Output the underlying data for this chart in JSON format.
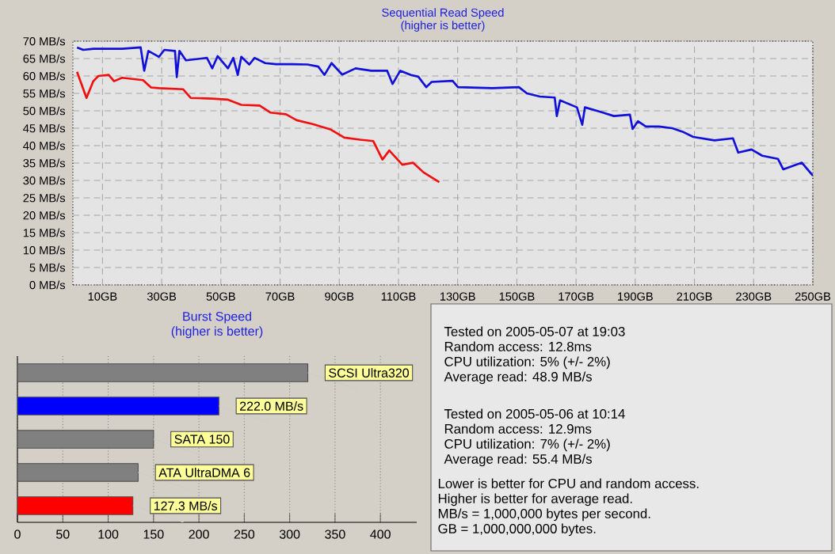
{
  "chart_data": [
    {
      "type": "line",
      "title": "Sequential Read Speed",
      "subtitle": "(higher is better)",
      "xlim": [
        0,
        250
      ],
      "ylim": [
        0,
        70
      ],
      "grid": true,
      "xticks": [
        {
          "value": 10,
          "label": "10GB"
        },
        {
          "value": 30,
          "label": "30GB"
        },
        {
          "value": 50,
          "label": "50GB"
        },
        {
          "value": 70,
          "label": "70GB"
        },
        {
          "value": 90,
          "label": "90GB"
        },
        {
          "value": 110,
          "label": "110GB"
        },
        {
          "value": 130,
          "label": "130GB"
        },
        {
          "value": 150,
          "label": "150GB"
        },
        {
          "value": 170,
          "label": "170GB"
        },
        {
          "value": 190,
          "label": "190GB"
        },
        {
          "value": 210,
          "label": "210GB"
        },
        {
          "value": 230,
          "label": "230GB"
        },
        {
          "value": 250,
          "label": "250GB"
        }
      ],
      "yticks": [
        {
          "value": 0,
          "label": "0 MB/s"
        },
        {
          "value": 5,
          "label": "5 MB/s"
        },
        {
          "value": 10,
          "label": "10 MB/s"
        },
        {
          "value": 15,
          "label": "15 MB/s"
        },
        {
          "value": 20,
          "label": "20 MB/s"
        },
        {
          "value": 25,
          "label": "25 MB/s"
        },
        {
          "value": 30,
          "label": "30 MB/s"
        },
        {
          "value": 35,
          "label": "35 MB/s"
        },
        {
          "value": 40,
          "label": "40 MB/s"
        },
        {
          "value": 45,
          "label": "45 MB/s"
        },
        {
          "value": 50,
          "label": "50 MB/s"
        },
        {
          "value": 55,
          "label": "55 MB/s"
        },
        {
          "value": 60,
          "label": "60 MB/s"
        },
        {
          "value": 65,
          "label": "65 MB/s"
        },
        {
          "value": 70,
          "label": "70 MB/s"
        }
      ],
      "series": [
        {
          "color": "#1010d8",
          "x": [
            1.4,
            3.5,
            7,
            16.6,
            22.9,
            24.1,
            25.5,
            29.1,
            30.9,
            34.5,
            35.1,
            36,
            38.2,
            45.3,
            47.1,
            48.9,
            52.4,
            54.2,
            55.7,
            56.9,
            59.6,
            61.4,
            65,
            68.6,
            74,
            79.3,
            82.9,
            85,
            87.4,
            91,
            95.5,
            100.8,
            106.2,
            108,
            110.6,
            114.2,
            116.7,
            119.4,
            121.2,
            128.3,
            130.1,
            141.7,
            150.7,
            153.4,
            157.8,
            162.8,
            163.5,
            164.6,
            170.3,
            172.1,
            173,
            177.5,
            182.8,
            188.2,
            189.1,
            190.9,
            193.6,
            198,
            202.5,
            206,
            209.6,
            216.8,
            223,
            224.8,
            229.3,
            232.9,
            238.2,
            240,
            246.3,
            250
          ],
          "values": [
            68.2,
            67.5,
            67.8,
            67.8,
            68.2,
            61.5,
            67.2,
            65.5,
            67.5,
            67.2,
            59.7,
            67.2,
            64.5,
            65.2,
            62.2,
            65.7,
            62.2,
            65.2,
            60.3,
            65.5,
            63.3,
            65.2,
            63.7,
            63.4,
            63.4,
            63.3,
            62.7,
            60.3,
            63.7,
            60.4,
            62.2,
            61.5,
            61.5,
            57.7,
            61.5,
            60.3,
            59.8,
            56.8,
            58.3,
            58.6,
            56.8,
            56.5,
            56.8,
            55,
            54.1,
            53.8,
            48.5,
            53,
            51,
            46,
            51,
            49.9,
            48.5,
            48.9,
            44.8,
            47,
            45.5,
            45.5,
            45,
            44,
            42.5,
            41.5,
            42.1,
            38,
            38.9,
            37.1,
            36.2,
            33.2,
            35.1,
            31.4
          ]
        },
        {
          "color": "#f01010",
          "x": [
            1.4,
            4.6,
            6.9,
            8.6,
            12.1,
            13.9,
            16.6,
            23.7,
            26.4,
            29.1,
            37.2,
            39.8,
            47,
            52.4,
            56.9,
            63.1,
            66.7,
            72,
            75.6,
            81,
            87.2,
            91.7,
            97.1,
            101.5,
            104.6,
            106.9,
            111.3,
            114.9,
            118.5,
            123.8
          ],
          "values": [
            61.2,
            53.7,
            58.5,
            60,
            60.3,
            58.5,
            59.5,
            58.8,
            56.7,
            56.5,
            56.2,
            53.7,
            53.5,
            53.2,
            51.7,
            51.5,
            49.5,
            49,
            47.3,
            46.2,
            44.6,
            42.3,
            41.7,
            41.3,
            36,
            38.6,
            34.5,
            35.1,
            32.3,
            29.5
          ]
        }
      ]
    },
    {
      "type": "bar",
      "orientation": "horizontal",
      "title": "Burst Speed",
      "subtitle": "(higher is better)",
      "categories": [
        null,
        null,
        null,
        null,
        null
      ],
      "values": [
        320,
        222.0,
        150,
        133,
        127.3
      ],
      "colors": [
        "#808080",
        "#0000ff",
        "#808080",
        "#808080",
        "#ff0000"
      ],
      "value_labels": [
        "SCSI Ultra320",
        "222.0 MB/s",
        "SATA 150",
        "ATA UltraDMA 6",
        "127.3 MB/s"
      ],
      "xlim": [
        0,
        440
      ],
      "xticks": [
        0,
        50,
        100,
        150,
        200,
        250,
        300,
        350,
        400
      ],
      "grid": "x"
    },
    {
      "type": "other",
      "annotations": [
        "Tested on 2005-05-07 at 19:03",
        "Random access: 12.8ms",
        "CPU utilization: 5% (+/- 2%)",
        "Average read: 48.9 MB/s",
        "Tested on 2005-05-06 at 10:14",
        "Random access: 12.9ms",
        "CPU utilization: 7% (+/- 2%)",
        "Average read: 55.4 MB/s",
        "Lower is better for CPU and random access.",
        "Higher is better for average read.",
        "MB/s = 1,000,000 bytes per second.",
        "GB = 1,000,000,000 bytes."
      ]
    }
  ]
}
